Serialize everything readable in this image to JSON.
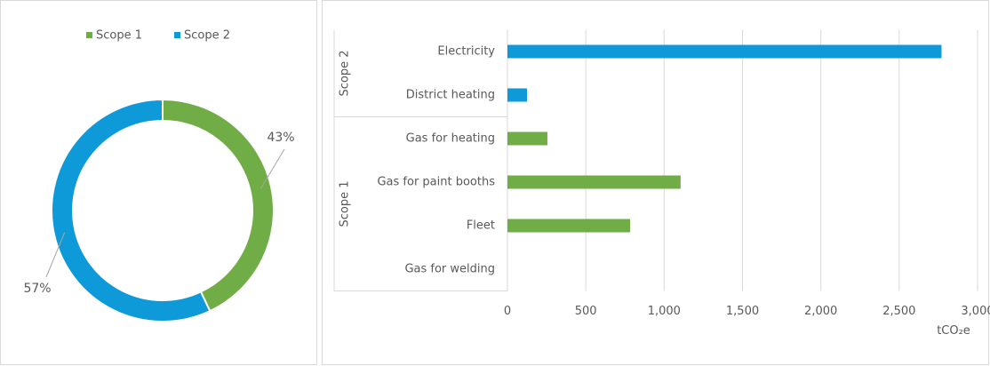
{
  "chart_data": [
    {
      "type": "pie",
      "donut": true,
      "categories": [
        "Scope 1",
        "Scope 2"
      ],
      "values": [
        43,
        57
      ],
      "value_labels": [
        "43%",
        "57%"
      ],
      "colors": [
        "#70ad47",
        "#0e9ad8"
      ],
      "legend": "top"
    },
    {
      "type": "bar",
      "orientation": "horizontal",
      "series": [
        {
          "name": "Scope 2",
          "color": "#0e9ad8",
          "categories": [
            "Electricity",
            "District heating"
          ],
          "values": [
            2770,
            125
          ]
        },
        {
          "name": "Scope 1",
          "color": "#70ad47",
          "categories": [
            "Gas for heating",
            "Gas for paint booths",
            "Fleet",
            "Gas for welding"
          ],
          "values": [
            255,
            1105,
            783,
            0
          ]
        }
      ],
      "xlim": [
        0,
        3000
      ],
      "xticks": [
        0,
        500,
        {
          "value": 1000,
          "label": "1,000"
        },
        {
          "value": 1500,
          "label": "1,500"
        },
        {
          "value": 2000,
          "label": "2,000"
        },
        {
          "value": 2500,
          "label": "2,500"
        },
        {
          "value": 3000,
          "label": "3,000"
        }
      ],
      "x_label": "tCO₂e",
      "grid": true
    }
  ]
}
